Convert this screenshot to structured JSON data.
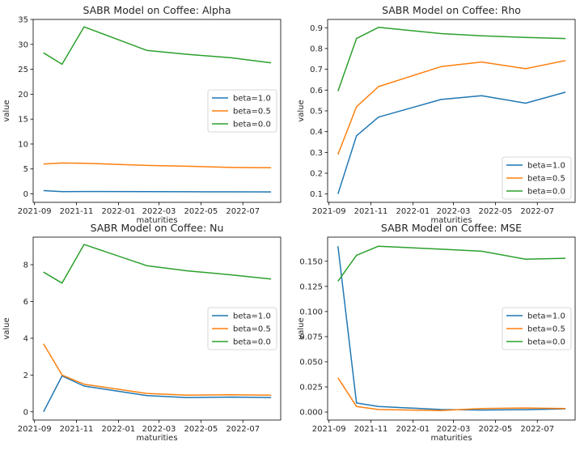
{
  "chart_data": [
    {
      "type": "line",
      "title": "SABR Model on Coffee: Alpha",
      "xlabel": "maturities",
      "ylabel": "value",
      "x": [
        "2021-09-14",
        "2021-10-11",
        "2021-11-12",
        "2022-02-11",
        "2022-04-11",
        "2022-06-14",
        "2022-08-11"
      ],
      "xticks": [
        "2021-09",
        "2021-11",
        "2022-01",
        "2022-03",
        "2022-05",
        "2022-07"
      ],
      "ylim": [
        -1.7,
        35
      ],
      "yticks": [
        0,
        5,
        10,
        15,
        20,
        25,
        30,
        35
      ],
      "legend": "center-right",
      "series": [
        {
          "name": "beta=1.0",
          "color": "#1f77b4",
          "values": [
            0.65,
            0.45,
            0.47,
            0.44,
            0.43,
            0.41,
            0.4
          ]
        },
        {
          "name": "beta=0.5",
          "color": "#ff7f0e",
          "values": [
            6.0,
            6.2,
            6.15,
            5.7,
            5.55,
            5.3,
            5.25
          ]
        },
        {
          "name": "beta=0.0",
          "color": "#2ca02c",
          "values": [
            28.3,
            26.0,
            33.5,
            28.8,
            28.0,
            27.3,
            26.3
          ]
        }
      ]
    },
    {
      "type": "line",
      "title": "SABR Model on Coffee: Rho",
      "xlabel": "maturities",
      "ylabel": "value",
      "x": [
        "2021-09-14",
        "2021-10-11",
        "2021-11-12",
        "2022-02-11",
        "2022-04-11",
        "2022-06-14",
        "2022-08-11"
      ],
      "xticks": [
        "2021-09",
        "2021-11",
        "2022-01",
        "2022-03",
        "2022-05",
        "2022-07"
      ],
      "ylim": [
        0.06,
        0.94
      ],
      "yticks": [
        "0.1",
        "0.2",
        "0.3",
        "0.4",
        "0.5",
        "0.6",
        "0.7",
        "0.8",
        "0.9"
      ],
      "legend": "lower-right",
      "series": [
        {
          "name": "beta=1.0",
          "color": "#1f77b4",
          "values": [
            0.1,
            0.38,
            0.47,
            0.555,
            0.573,
            0.537,
            0.59
          ]
        },
        {
          "name": "beta=0.5",
          "color": "#ff7f0e",
          "values": [
            0.29,
            0.52,
            0.617,
            0.713,
            0.735,
            0.703,
            0.742
          ]
        },
        {
          "name": "beta=0.0",
          "color": "#2ca02c",
          "values": [
            0.595,
            0.848,
            0.902,
            0.872,
            0.861,
            0.853,
            0.848
          ]
        }
      ]
    },
    {
      "type": "line",
      "title": "SABR Model on Coffee: Nu",
      "xlabel": "maturities",
      "ylabel": "value",
      "x": [
        "2021-09-14",
        "2021-10-11",
        "2021-11-12",
        "2022-02-11",
        "2022-04-11",
        "2022-06-14",
        "2022-08-11"
      ],
      "xticks": [
        "2021-09",
        "2021-11",
        "2022-01",
        "2022-03",
        "2022-05",
        "2022-07"
      ],
      "ylim": [
        -0.45,
        9.5
      ],
      "yticks": [
        0,
        2,
        4,
        6,
        8
      ],
      "legend": "center-right",
      "series": [
        {
          "name": "beta=1.0",
          "color": "#1f77b4",
          "values": [
            0.0,
            1.95,
            1.4,
            0.88,
            0.77,
            0.8,
            0.77
          ]
        },
        {
          "name": "beta=0.5",
          "color": "#ff7f0e",
          "values": [
            3.7,
            2.0,
            1.5,
            1.0,
            0.9,
            0.93,
            0.9
          ]
        },
        {
          "name": "beta=0.0",
          "color": "#2ca02c",
          "values": [
            7.6,
            7.0,
            9.1,
            7.95,
            7.67,
            7.45,
            7.22
          ]
        }
      ]
    },
    {
      "type": "line",
      "title": "SABR Model on Coffee: MSE",
      "xlabel": "maturities",
      "ylabel": "value",
      "x": [
        "2021-09-14",
        "2021-10-11",
        "2021-11-12",
        "2022-02-11",
        "2022-04-11",
        "2022-06-14",
        "2022-08-11"
      ],
      "xticks": [
        "2021-09",
        "2021-11",
        "2022-01",
        "2022-03",
        "2022-05",
        "2022-07"
      ],
      "ylim": [
        -0.008,
        0.174
      ],
      "yticks": [
        "0.000",
        "0.025",
        "0.050",
        "0.075",
        "0.100",
        "0.125",
        "0.150"
      ],
      "legend": "center-right",
      "series": [
        {
          "name": "beta=1.0",
          "color": "#1f77b4",
          "values": [
            0.165,
            0.009,
            0.0055,
            0.0025,
            0.002,
            0.0023,
            0.0032
          ]
        },
        {
          "name": "beta=0.5",
          "color": "#ff7f0e",
          "values": [
            0.034,
            0.0055,
            0.0025,
            0.0015,
            0.0035,
            0.004,
            0.0035
          ]
        },
        {
          "name": "beta=0.0",
          "color": "#2ca02c",
          "values": [
            0.13,
            0.156,
            0.165,
            0.162,
            0.16,
            0.152,
            0.153
          ]
        }
      ]
    }
  ]
}
